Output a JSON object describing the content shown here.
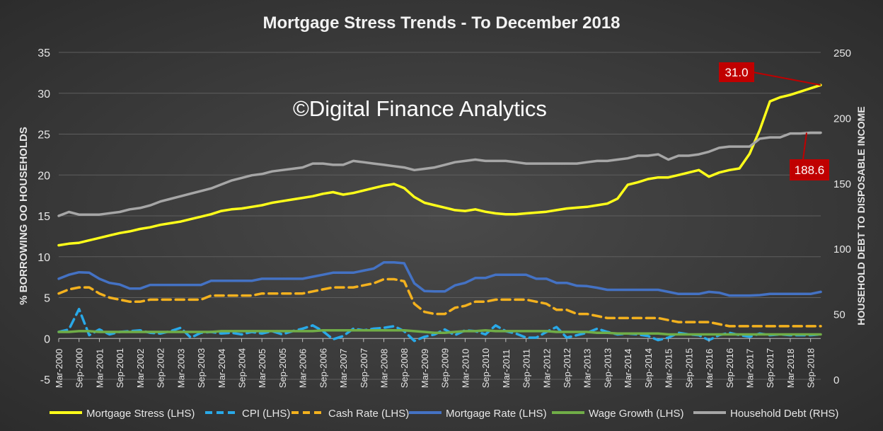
{
  "chart_data": {
    "type": "line",
    "title": "Mortgage Stress Trends - To December 2018",
    "watermark": "©Digital Finance Analytics",
    "ylabel_left": "% BORROWING OO HOUSEHOLDS",
    "ylabel_right": "HOUSEHOLD DEBT TO DISPOSABLE INCOME",
    "ylim_left": [
      -5,
      35
    ],
    "ylim_right": [
      0,
      250
    ],
    "yticks_left": [
      "35",
      "30",
      "25",
      "20",
      "15",
      "10",
      "5",
      "0",
      "-5"
    ],
    "yticks_right": [
      "250",
      "200",
      "150",
      "100",
      "50",
      "0"
    ],
    "grid": true,
    "legend_position": "bottom",
    "x_tick_labels": [
      "Mar-2000",
      "Sep-2000",
      "Mar-2001",
      "Sep-2001",
      "Mar-2002",
      "Sep-2002",
      "Mar-2003",
      "Sep-2003",
      "Mar-2004",
      "Sep-2004",
      "Mar-2005",
      "Sep-2005",
      "Mar-2006",
      "Sep-2006",
      "Mar-2007",
      "Sep-2007",
      "Mar-2008",
      "Sep-2008",
      "Mar-2009",
      "Sep-2009",
      "Mar-2010",
      "Sep-2010",
      "Mar-2011",
      "Sep-2011",
      "Mar-2012",
      "Sep-2012",
      "Mar-2013",
      "Sep-2013",
      "Mar-2014",
      "Sep-2014",
      "Mar-2015",
      "Sep-2015",
      "Mar-2016",
      "Sep-2016",
      "Mar-2017",
      "Sep-2017",
      "Mar-2018",
      "Sep-2018"
    ],
    "x_months": [
      "2000-03",
      "2000-06",
      "2000-09",
      "2000-12",
      "2001-03",
      "2001-06",
      "2001-09",
      "2001-12",
      "2002-03",
      "2002-06",
      "2002-09",
      "2002-12",
      "2003-03",
      "2003-06",
      "2003-09",
      "2003-12",
      "2004-03",
      "2004-06",
      "2004-09",
      "2004-12",
      "2005-03",
      "2005-06",
      "2005-09",
      "2005-12",
      "2006-03",
      "2006-06",
      "2006-09",
      "2006-12",
      "2007-03",
      "2007-06",
      "2007-09",
      "2007-12",
      "2008-03",
      "2008-06",
      "2008-09",
      "2008-12",
      "2009-03",
      "2009-06",
      "2009-09",
      "2009-12",
      "2010-03",
      "2010-06",
      "2010-09",
      "2010-12",
      "2011-03",
      "2011-06",
      "2011-09",
      "2011-12",
      "2012-03",
      "2012-06",
      "2012-09",
      "2012-12",
      "2013-03",
      "2013-06",
      "2013-09",
      "2013-12",
      "2014-03",
      "2014-06",
      "2014-09",
      "2014-12",
      "2015-03",
      "2015-06",
      "2015-09",
      "2015-12",
      "2016-03",
      "2016-06",
      "2016-09",
      "2016-12",
      "2017-03",
      "2017-06",
      "2017-09",
      "2017-12",
      "2018-03",
      "2018-06",
      "2018-09",
      "2018-12"
    ],
    "series": [
      {
        "name": "Mortgage Stress (LHS)",
        "axis": "left",
        "color": "#ffff1a",
        "dash": "solid",
        "values": [
          11.4,
          11.6,
          11.7,
          12.0,
          12.3,
          12.6,
          12.9,
          13.1,
          13.4,
          13.6,
          13.9,
          14.1,
          14.3,
          14.6,
          14.9,
          15.2,
          15.6,
          15.8,
          15.9,
          16.1,
          16.3,
          16.6,
          16.8,
          17.0,
          17.2,
          17.4,
          17.7,
          17.9,
          17.6,
          17.8,
          18.1,
          18.4,
          18.7,
          18.9,
          18.4,
          17.3,
          16.6,
          16.3,
          16.0,
          15.7,
          15.6,
          15.8,
          15.5,
          15.3,
          15.2,
          15.2,
          15.3,
          15.4,
          15.5,
          15.7,
          15.9,
          16.0,
          16.1,
          16.3,
          16.5,
          17.1,
          18.8,
          19.1,
          19.5,
          19.7,
          19.7,
          20.0,
          20.3,
          20.6,
          19.8,
          20.3,
          20.6,
          20.8,
          22.6,
          25.5,
          29.0,
          29.5,
          29.8,
          30.2,
          30.6,
          31.0
        ]
      },
      {
        "name": "CPI (LHS)",
        "axis": "left",
        "color": "#29a9e8",
        "dash": "dash",
        "values": [
          0.8,
          1.1,
          3.6,
          0.4,
          1.1,
          0.5,
          0.8,
          0.9,
          1.0,
          0.7,
          0.6,
          0.9,
          1.3,
          0.1,
          0.7,
          0.8,
          0.6,
          0.7,
          0.5,
          0.8,
          0.6,
          0.9,
          0.5,
          0.9,
          1.2,
          1.6,
          0.9,
          -0.1,
          0.3,
          1.2,
          1.0,
          1.2,
          1.3,
          1.5,
          0.9,
          -0.3,
          0.2,
          0.5,
          1.1,
          0.4,
          1.0,
          0.9,
          0.5,
          1.6,
          0.9,
          0.6,
          0.1,
          0.1,
          0.8,
          1.4,
          0.1,
          0.4,
          0.7,
          1.2,
          0.8,
          0.5,
          0.6,
          0.5,
          0.3,
          -0.2,
          0.1,
          0.7,
          0.5,
          0.4,
          -0.2,
          0.4,
          0.7,
          0.4,
          0.2,
          0.6,
          0.4,
          0.5,
          0.4,
          0.4,
          0.4,
          0.5
        ]
      },
      {
        "name": "Cash Rate (LHS)",
        "axis": "left",
        "color": "#f3b11e",
        "dash": "dash",
        "values": [
          5.5,
          6.0,
          6.25,
          6.25,
          5.5,
          5.0,
          4.75,
          4.5,
          4.5,
          4.75,
          4.75,
          4.75,
          4.75,
          4.75,
          4.75,
          5.25,
          5.25,
          5.25,
          5.25,
          5.25,
          5.5,
          5.5,
          5.5,
          5.5,
          5.5,
          5.75,
          6.0,
          6.25,
          6.25,
          6.25,
          6.5,
          6.75,
          7.25,
          7.25,
          7.0,
          4.25,
          3.25,
          3.0,
          3.0,
          3.75,
          4.0,
          4.5,
          4.5,
          4.75,
          4.75,
          4.75,
          4.75,
          4.5,
          4.25,
          3.5,
          3.5,
          3.0,
          3.0,
          2.75,
          2.5,
          2.5,
          2.5,
          2.5,
          2.5,
          2.5,
          2.25,
          2.0,
          2.0,
          2.0,
          2.0,
          1.75,
          1.5,
          1.5,
          1.5,
          1.5,
          1.5,
          1.5,
          1.5,
          1.5,
          1.5,
          1.5
        ]
      },
      {
        "name": "Mortgage Rate (LHS)",
        "axis": "left",
        "color": "#4472c4",
        "dash": "solid",
        "values": [
          7.3,
          7.8,
          8.1,
          8.05,
          7.3,
          6.8,
          6.6,
          6.1,
          6.1,
          6.55,
          6.55,
          6.55,
          6.55,
          6.55,
          6.55,
          7.05,
          7.05,
          7.05,
          7.05,
          7.05,
          7.3,
          7.3,
          7.3,
          7.3,
          7.3,
          7.55,
          7.8,
          8.05,
          8.05,
          8.05,
          8.3,
          8.55,
          9.3,
          9.3,
          9.2,
          6.75,
          5.8,
          5.75,
          5.75,
          6.5,
          6.8,
          7.4,
          7.4,
          7.8,
          7.8,
          7.8,
          7.8,
          7.3,
          7.3,
          6.8,
          6.8,
          6.45,
          6.4,
          6.2,
          5.95,
          5.95,
          5.95,
          5.95,
          5.95,
          5.95,
          5.7,
          5.45,
          5.45,
          5.45,
          5.7,
          5.6,
          5.25,
          5.25,
          5.25,
          5.3,
          5.45,
          5.45,
          5.45,
          5.45,
          5.45,
          5.7
        ]
      },
      {
        "name": "Wage Growth (LHS)",
        "axis": "left",
        "color": "#70ad47",
        "dash": "solid",
        "values": [
          0.8,
          0.8,
          0.9,
          0.9,
          0.8,
          0.8,
          0.8,
          0.8,
          0.8,
          0.8,
          0.8,
          0.8,
          0.8,
          0.8,
          0.8,
          0.8,
          0.9,
          0.9,
          0.9,
          0.9,
          0.9,
          0.9,
          0.9,
          0.9,
          0.9,
          0.9,
          1.0,
          1.0,
          1.0,
          1.0,
          1.0,
          1.0,
          1.0,
          1.0,
          1.0,
          0.9,
          0.8,
          0.7,
          0.7,
          0.8,
          0.9,
          0.9,
          1.0,
          0.9,
          0.9,
          0.9,
          0.9,
          0.9,
          0.9,
          0.8,
          0.8,
          0.8,
          0.8,
          0.7,
          0.7,
          0.6,
          0.6,
          0.6,
          0.6,
          0.6,
          0.5,
          0.5,
          0.5,
          0.5,
          0.5,
          0.5,
          0.5,
          0.5,
          0.5,
          0.5,
          0.5,
          0.5,
          0.5,
          0.5,
          0.5,
          0.5
        ]
      },
      {
        "name": "Household Debt (RHS)",
        "axis": "right",
        "color": "#a6a6a6",
        "dash": "solid",
        "values": [
          125,
          128,
          126,
          126,
          126,
          127,
          128,
          130,
          131,
          133,
          136,
          138,
          140,
          142,
          144,
          146,
          149,
          152,
          154,
          156,
          157,
          159,
          160,
          161,
          162,
          165,
          165,
          164,
          164,
          167,
          166,
          165,
          164,
          163,
          162,
          160,
          161,
          162,
          164,
          166,
          167,
          168,
          167,
          167,
          167,
          166,
          165,
          165,
          165,
          165,
          165,
          165,
          166,
          167,
          167,
          168,
          169,
          171,
          171,
          172,
          168,
          171,
          171,
          172,
          174,
          177,
          178,
          178,
          178,
          184,
          185,
          185,
          188,
          188,
          188.6,
          188.6
        ]
      }
    ],
    "annotations": [
      {
        "label": "31.0",
        "series": "Mortgage Stress (LHS)",
        "value": 31.0
      },
      {
        "label": "188.6",
        "series": "Household Debt (RHS)",
        "value": 188.6
      }
    ]
  }
}
